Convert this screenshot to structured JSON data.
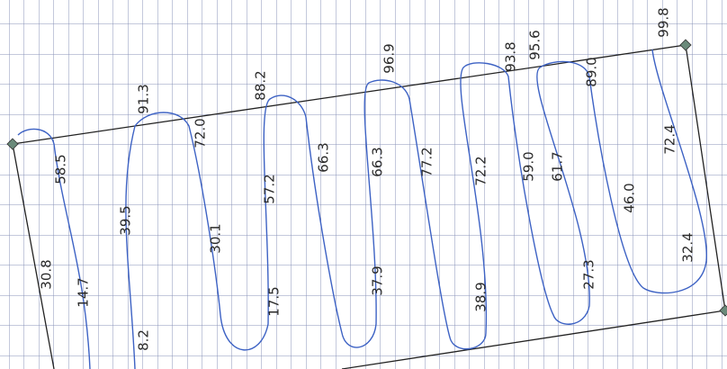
{
  "labels": [
    "30.8",
    "58.5",
    "14.7",
    "91.3",
    "39.5",
    "8.2",
    "72.0",
    "30.1",
    "88.2",
    "57.2",
    "17.5",
    "66.3",
    "37.9",
    "66.3",
    "96.9",
    "77.2",
    "72.2",
    "38.9",
    "93.8",
    "95.6",
    "59.0",
    "61.7",
    "27.3",
    "89.0",
    "46.0",
    "72.4",
    "32.4",
    "99.8"
  ]
}
